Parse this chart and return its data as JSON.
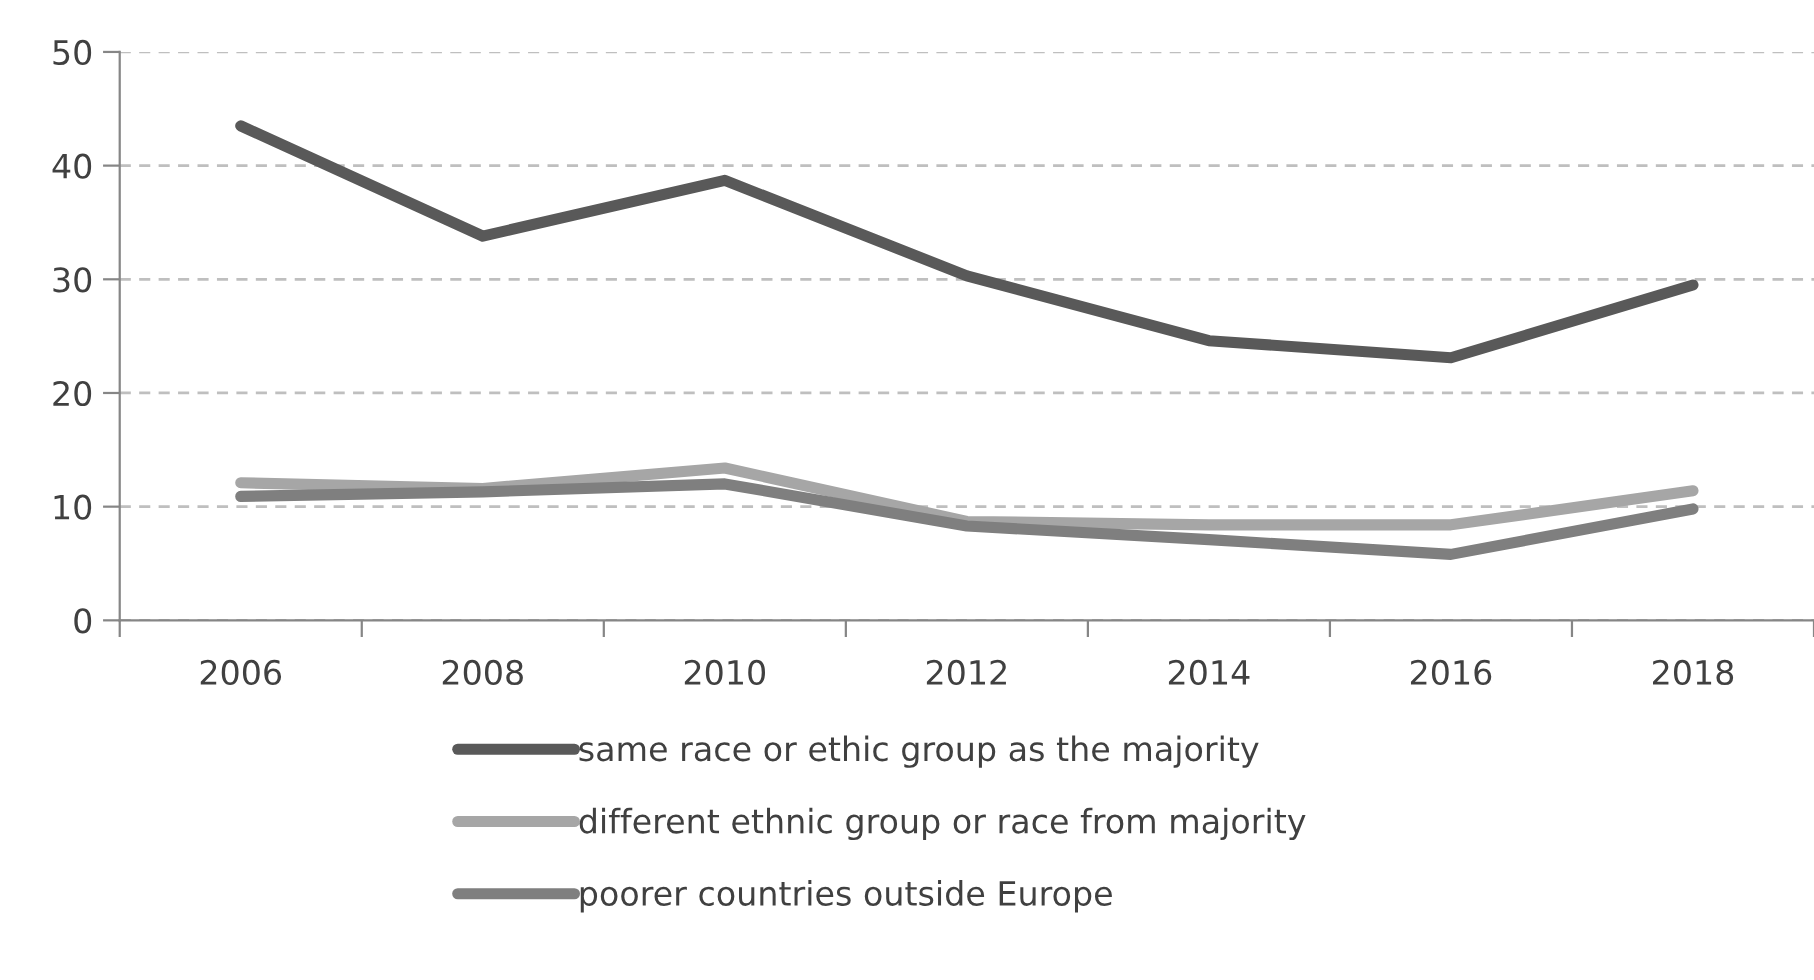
{
  "chart_data": {
    "type": "line",
    "categories": [
      "2006",
      "2008",
      "2010",
      "2012",
      "2014",
      "2016",
      "2018"
    ],
    "series": [
      {
        "name": "same race or ethic group as the majority",
        "color": "#595959",
        "values": [
          43.5,
          33.8,
          38.7,
          30.3,
          24.6,
          23.1,
          29.5
        ]
      },
      {
        "name": "different ethnic group or race from majority",
        "color": "#a6a6a6",
        "values": [
          12.1,
          11.6,
          13.4,
          8.7,
          8.4,
          8.4,
          11.4
        ]
      },
      {
        "name": "poorer countries outside Europe",
        "color": "#7f7f7f",
        "values": [
          10.9,
          11.3,
          12.0,
          8.3,
          7.1,
          5.8,
          9.8
        ]
      }
    ],
    "ylim": [
      0,
      50
    ],
    "yticks": [
      0,
      10,
      20,
      30,
      40,
      50
    ],
    "grid": "y",
    "legend": "bottom",
    "line_style": "solid",
    "marker": "none"
  }
}
